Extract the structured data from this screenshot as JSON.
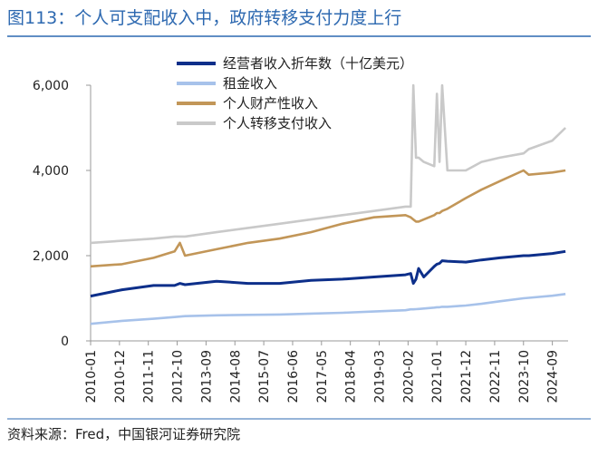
{
  "chart_data": {
    "type": "line",
    "title": "图113：个人可支配收入中，政府转移支付力度上行",
    "source": "资料来源：Fred，中国银河证券研究院",
    "x": [
      "2010-01",
      "2011-01",
      "2012-01",
      "2012-09",
      "2012-11",
      "2013-01",
      "2014-01",
      "2015-01",
      "2016-01",
      "2017-01",
      "2018-01",
      "2019-01",
      "2020-01",
      "2020-03",
      "2020-04",
      "2020-05",
      "2020-06",
      "2020-08",
      "2020-12",
      "2021-01",
      "2021-02",
      "2021-03",
      "2021-05",
      "2021-12",
      "2022-06",
      "2023-01",
      "2023-10",
      "2023-12",
      "2024-09",
      "2025-02"
    ],
    "xlim": [
      "2010-01",
      "2025-03"
    ],
    "xticks": [
      "2010-01",
      "2010-12",
      "2011-11",
      "2012-10",
      "2013-09",
      "2014-08",
      "2015-07",
      "2016-06",
      "2017-05",
      "2018-04",
      "2019-03",
      "2020-02",
      "2021-01",
      "2021-12",
      "2022-11",
      "2023-10",
      "2024-09"
    ],
    "ylim": [
      0,
      6000
    ],
    "yticks": [
      0,
      {
        "value": 2000,
        "label": "2,000"
      },
      {
        "value": 4000,
        "label": "4,000"
      },
      {
        "value": 6000,
        "label": "6,000"
      }
    ],
    "legend": "top",
    "series": [
      {
        "name": "经营者收入折年数（十亿美元）",
        "color": "#0d2f8a",
        "values": [
          1050,
          1200,
          1300,
          1300,
          1350,
          1320,
          1400,
          1350,
          1350,
          1420,
          1450,
          1500,
          1550,
          1580,
          1350,
          1450,
          1700,
          1500,
          1750,
          1800,
          1820,
          1880,
          1870,
          1850,
          1900,
          1950,
          2000,
          2000,
          2050,
          2100
        ]
      },
      {
        "name": "租金收入",
        "color": "#a7c2ea",
        "values": [
          400,
          470,
          520,
          560,
          570,
          580,
          600,
          610,
          620,
          640,
          660,
          690,
          720,
          740,
          740,
          745,
          750,
          760,
          780,
          790,
          790,
          800,
          800,
          830,
          870,
          930,
          1000,
          1010,
          1060,
          1100
        ]
      },
      {
        "name": "个人财产性收入",
        "color": "#c29658",
        "values": [
          1750,
          1800,
          1950,
          2100,
          2300,
          2000,
          2150,
          2300,
          2400,
          2550,
          2750,
          2900,
          2950,
          2900,
          2850,
          2800,
          2800,
          2850,
          2950,
          3000,
          3000,
          3050,
          3100,
          3350,
          3550,
          3750,
          4000,
          3900,
          3950,
          4000
        ]
      },
      {
        "name": "个人转移支付收入",
        "color": "#c9c9c9",
        "values": [
          2300,
          2350,
          2400,
          2450,
          2450,
          2450,
          2550,
          2650,
          2750,
          2850,
          2950,
          3050,
          3150,
          3150,
          6000,
          4300,
          4300,
          4200,
          4100,
          5800,
          4200,
          6000,
          4000,
          4000,
          4200,
          4300,
          4400,
          4500,
          4700,
          5000
        ]
      }
    ]
  }
}
